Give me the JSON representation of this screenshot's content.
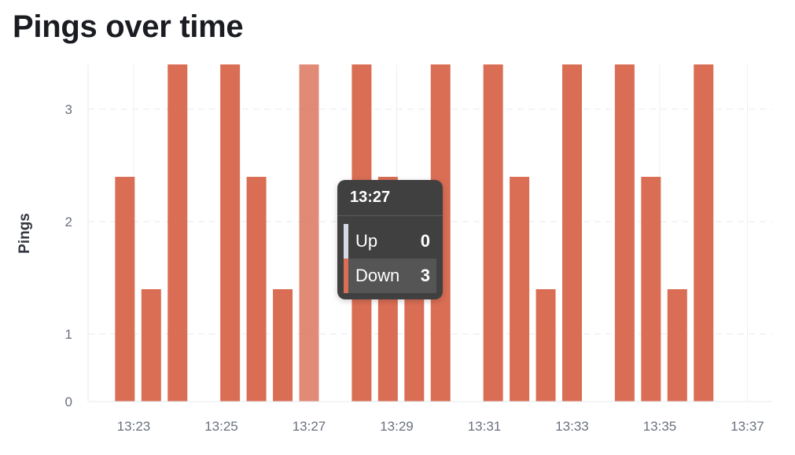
{
  "title": "Pings over time",
  "chart_data": {
    "type": "bar",
    "title": "Pings over time",
    "ylabel": "Pings",
    "xlabel": "",
    "y_ticks": [
      "0",
      "1",
      "2",
      "3"
    ],
    "x_ticks": [
      "13:23",
      "13:25",
      "13:27",
      "13:29",
      "13:31",
      "13:33",
      "13:35",
      "13:37"
    ],
    "grid": true,
    "x": [
      "13:22:48",
      "13:23:24",
      "13:24:00",
      "13:24:36",
      "13:25:12",
      "13:25:48",
      "13:26:24",
      "13:27:00",
      "13:27:36",
      "13:28:12",
      "13:28:48",
      "13:29:24",
      "13:30:00",
      "13:30:36",
      "13:31:12",
      "13:31:48",
      "13:32:24",
      "13:33:00",
      "13:33:36",
      "13:34:12",
      "13:34:48",
      "13:35:24",
      "13:36:00"
    ],
    "series": [
      {
        "name": "Up",
        "color": "#d3dae6",
        "values": [
          0,
          0,
          0,
          0,
          0,
          0,
          0,
          0,
          0,
          0,
          0,
          0,
          0,
          0,
          0,
          0,
          0,
          0,
          0,
          0,
          0,
          0,
          0
        ]
      },
      {
        "name": "Down",
        "color": "#da6e55",
        "values": [
          2,
          1,
          3,
          0,
          3,
          2,
          1,
          3,
          0,
          3,
          2,
          1,
          3,
          0,
          3,
          2,
          1,
          3,
          0,
          3,
          2,
          1,
          3
        ]
      }
    ],
    "highlighted_index": 7
  },
  "tooltip": {
    "title": "13:27",
    "rows": [
      {
        "label": "Up",
        "value": "0",
        "color": "#d3dae6"
      },
      {
        "label": "Down",
        "value": "3",
        "color": "#da6e55"
      }
    ]
  }
}
